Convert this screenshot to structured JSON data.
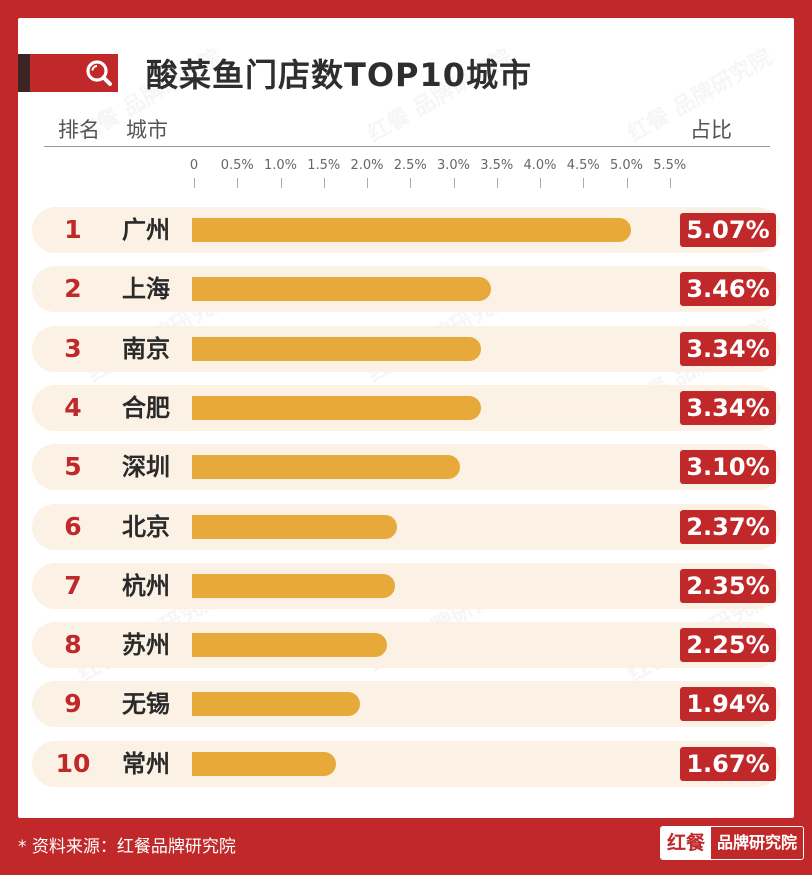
{
  "title": "酸菜鱼门店数TOP10城市",
  "header": {
    "rank": "排名",
    "city": "城市",
    "share": "占比"
  },
  "chart_data": {
    "type": "bar",
    "orientation": "horizontal",
    "title": "酸菜鱼门店数TOP10城市",
    "x_ticks": [
      "0",
      "0.5%",
      "1.0%",
      "1.5%",
      "2.0%",
      "2.5%",
      "3.0%",
      "3.5%",
      "4.0%",
      "4.5%",
      "5.0%",
      "5.5%"
    ],
    "xlim": [
      0,
      5.5
    ],
    "ranks": [
      "1",
      "2",
      "3",
      "4",
      "5",
      "6",
      "7",
      "8",
      "9",
      "10"
    ],
    "categories": [
      "广州",
      "上海",
      "南京",
      "合肥",
      "深圳",
      "北京",
      "杭州",
      "苏州",
      "无锡",
      "常州"
    ],
    "values": [
      5.07,
      3.46,
      3.34,
      3.34,
      3.1,
      2.37,
      2.35,
      2.25,
      1.94,
      1.67
    ],
    "labels": [
      "5.07%",
      "3.46%",
      "3.34%",
      "3.34%",
      "3.10%",
      "2.37%",
      "2.35%",
      "2.25%",
      "1.94%",
      "1.67%"
    ],
    "bar_color": "#e6a93a"
  },
  "watermark": "红餐 品牌研究院",
  "footer": {
    "source": "* 资料来源：红餐品牌研究院",
    "logo_left": "红餐",
    "logo_right": "品牌研究院"
  },
  "colors": {
    "brand": "#c0282a",
    "bar": "#e6a93a",
    "row_bg": "#fbf1e4"
  }
}
